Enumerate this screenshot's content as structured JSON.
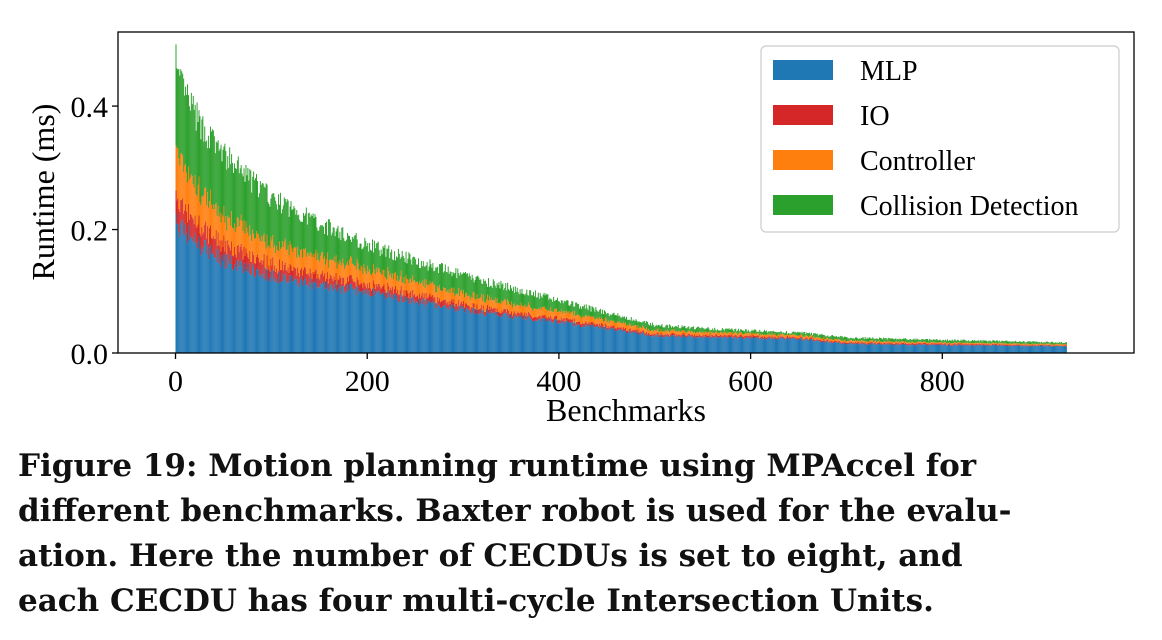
{
  "chart_data": {
    "type": "bar",
    "subtype": "stacked",
    "xlabel": "Benchmarks",
    "ylabel": "Runtime (ms)",
    "xlim": [
      -60,
      1000
    ],
    "ylim": [
      0,
      0.52
    ],
    "xticks": [
      0,
      200,
      400,
      600,
      800
    ],
    "yticks": [
      0.0,
      0.2,
      0.4
    ],
    "xtick_labels": [
      "0",
      "200",
      "400",
      "600",
      "800"
    ],
    "ytick_labels": [
      "0.0",
      "0.2",
      "0.4"
    ],
    "legend_position": "top-right",
    "series": [
      {
        "name": "MLP",
        "color": "#1f77b4"
      },
      {
        "name": "IO",
        "color": "#d62728"
      },
      {
        "name": "Controller",
        "color": "#ff7f0e"
      },
      {
        "name": "Collision Detection",
        "color": "#2ca02c"
      }
    ],
    "sample_points": {
      "benchmark": [
        0,
        25,
        50,
        100,
        150,
        200,
        250,
        300,
        350,
        400,
        450,
        500,
        550,
        600,
        650,
        700,
        800,
        930
      ],
      "total": [
        0.45,
        0.37,
        0.32,
        0.25,
        0.21,
        0.175,
        0.15,
        0.125,
        0.105,
        0.085,
        0.065,
        0.045,
        0.04,
        0.036,
        0.033,
        0.025,
        0.021,
        0.017
      ],
      "mlp": [
        0.21,
        0.175,
        0.15,
        0.125,
        0.11,
        0.1,
        0.085,
        0.07,
        0.06,
        0.05,
        0.04,
        0.028,
        0.026,
        0.024,
        0.023,
        0.015,
        0.013,
        0.011
      ],
      "io": [
        0.04,
        0.03,
        0.026,
        0.019,
        0.015,
        0.012,
        0.01,
        0.008,
        0.006,
        0.005,
        0.004,
        0.003,
        0.003,
        0.003,
        0.002,
        0.002,
        0.002,
        0.001
      ],
      "controller": [
        0.08,
        0.055,
        0.045,
        0.035,
        0.03,
        0.025,
        0.021,
        0.017,
        0.014,
        0.012,
        0.009,
        0.006,
        0.005,
        0.004,
        0.004,
        0.003,
        0.002,
        0.002
      ]
    },
    "n_benchmarks": 930
  },
  "caption": [
    "Figure 19: Motion planning runtime using MPAccel for",
    "different benchmarks. Baxter robot is used for the evalu-",
    "ation. Here the number of CECDUs is set to eight, and",
    "each CECDU has four multi-cycle Intersection Units."
  ]
}
